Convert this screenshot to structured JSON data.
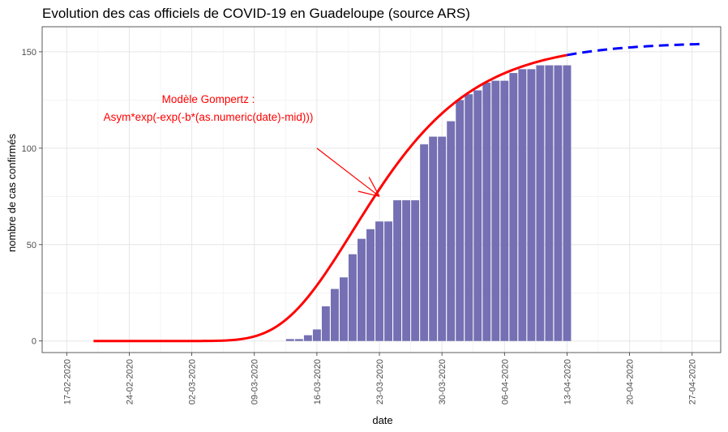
{
  "chart_data": {
    "type": "bar",
    "title": "Evolution des cas officiels de COVID-19 en Guadeloupe (source ARS)",
    "xlabel": "date",
    "ylabel": "nombre de cas confirmés",
    "x_ticks": [
      "17-02-2020",
      "24-02-2020",
      "02-03-2020",
      "09-03-2020",
      "16-03-2020",
      "23-03-2020",
      "30-03-2020",
      "06-04-2020",
      "13-04-2020",
      "20-04-2020",
      "27-04-2020"
    ],
    "y_ticks": [
      0,
      50,
      100,
      150
    ],
    "ylim": [
      -6,
      163
    ],
    "grid": true,
    "series": [
      {
        "type": "bar",
        "color": "#7570b3",
        "dates": [
          "2020-03-13",
          "2020-03-14",
          "2020-03-15",
          "2020-03-16",
          "2020-03-17",
          "2020-03-18",
          "2020-03-19",
          "2020-03-20",
          "2020-03-21",
          "2020-03-22",
          "2020-03-23",
          "2020-03-24",
          "2020-03-25",
          "2020-03-26",
          "2020-03-27",
          "2020-03-28",
          "2020-03-29",
          "2020-03-30",
          "2020-03-31",
          "2020-04-01",
          "2020-04-02",
          "2020-04-03",
          "2020-04-04",
          "2020-04-05",
          "2020-04-06",
          "2020-04-07",
          "2020-04-08",
          "2020-04-09",
          "2020-04-10",
          "2020-04-11",
          "2020-04-12",
          "2020-04-13"
        ],
        "values": [
          1,
          1,
          3,
          6,
          18,
          27,
          33,
          45,
          53,
          58,
          62,
          62,
          73,
          73,
          73,
          102,
          106,
          106,
          114,
          125,
          128,
          130,
          134,
          135,
          135,
          139,
          141,
          141,
          143,
          143,
          143,
          143
        ]
      },
      {
        "type": "line",
        "style": "solid",
        "color": "#ff0000",
        "model": "gompertz",
        "params": {
          "Asym": 155,
          "b": 0.13,
          "mid_date": "2020-03-20"
        },
        "from": "2020-02-20",
        "to": "2020-04-13"
      },
      {
        "type": "line",
        "style": "dashed",
        "color": "#0000ff",
        "model": "gompertz",
        "params": {
          "Asym": 155,
          "b": 0.13,
          "mid_date": "2020-03-20"
        },
        "from": "2020-04-13",
        "to": "2020-04-28"
      }
    ],
    "annotation": {
      "lines": [
        "Modèle Gompertz :",
        "Asym*exp(-exp(-b*(as.numeric(date)-mid)))"
      ],
      "color": "#ff0000",
      "arrow_from": {
        "date": "2020-03-16",
        "value": 100
      },
      "arrow_to": {
        "date": "2020-03-23",
        "value": 75
      }
    }
  }
}
